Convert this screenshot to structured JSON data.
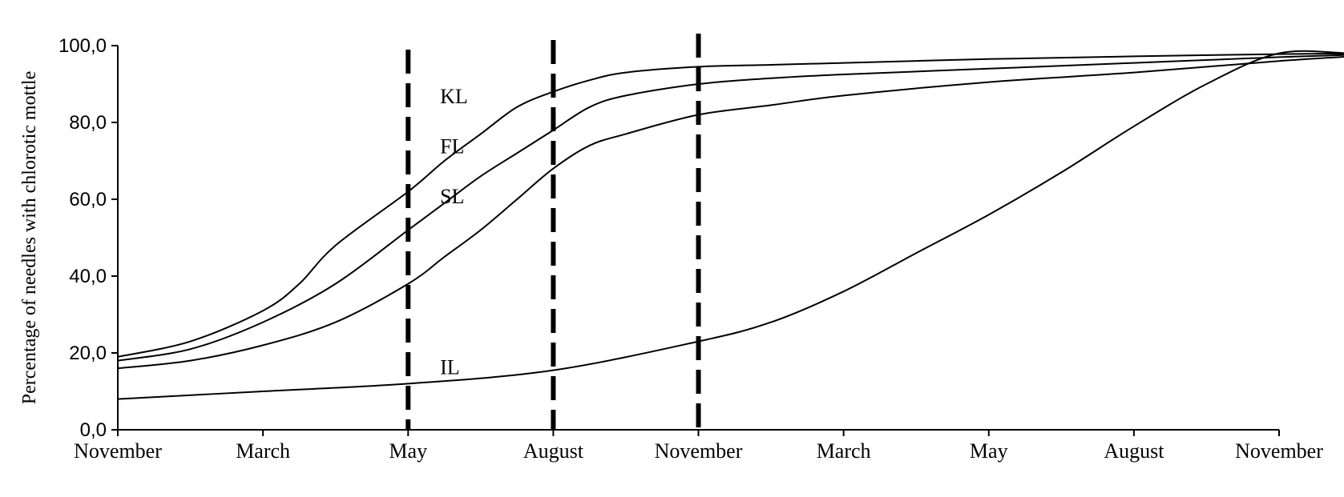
{
  "chart_data": {
    "type": "line",
    "ylabel": "Percentage of needles with chlorotic mottle",
    "xlabel": "",
    "ylim": [
      0,
      100
    ],
    "y_ticks": [
      "0,0",
      "20,0",
      "40,0",
      "60,0",
      "80,0",
      "100,0"
    ],
    "y_tick_values": [
      0,
      20,
      40,
      60,
      80,
      100
    ],
    "x_categories": [
      "November",
      "March",
      "May",
      "August",
      "November",
      "March",
      "May",
      "August",
      "November"
    ],
    "grid": false,
    "legend": "none (series labeled directly on lines)",
    "vertical_markers": [
      {
        "x": 2,
        "style": "dashed"
      },
      {
        "x": 3,
        "style": "dashed"
      },
      {
        "x": 4,
        "style": "dashed"
      }
    ],
    "series": [
      {
        "name": "KL",
        "x": [
          0,
          0.5,
          1,
          1.25,
          1.5,
          2,
          2.25,
          2.5,
          2.75,
          3,
          3.25,
          3.5,
          4,
          4.5,
          5,
          6,
          7,
          8,
          8.85
        ],
        "values": [
          19,
          23,
          31,
          38,
          48,
          62,
          70,
          77,
          84,
          88,
          91,
          93,
          94.5,
          95,
          95.5,
          96.5,
          97.2,
          97.8,
          98
        ]
      },
      {
        "name": "FL",
        "x": [
          0,
          0.5,
          1,
          1.5,
          2,
          2.25,
          2.5,
          2.75,
          3,
          3.25,
          3.5,
          4,
          4.5,
          5,
          6,
          7,
          8,
          8.85
        ],
        "values": [
          18,
          21,
          28,
          38,
          52,
          59,
          66,
          72,
          78,
          84,
          87,
          90,
          91.5,
          92.5,
          94,
          95.5,
          97,
          98
        ]
      },
      {
        "name": "SL",
        "x": [
          0,
          0.5,
          1,
          1.5,
          2,
          2.25,
          2.5,
          2.75,
          3,
          3.25,
          3.5,
          4,
          4.5,
          5,
          6,
          7,
          8,
          8.85
        ],
        "values": [
          16,
          18,
          22,
          28,
          38,
          45,
          52,
          60,
          68,
          74,
          77,
          82,
          84.5,
          87,
          90.5,
          93,
          96,
          98
        ]
      },
      {
        "name": "IL",
        "x": [
          0,
          1,
          2,
          3,
          4,
          4.5,
          5,
          5.5,
          6,
          6.5,
          7,
          7.5,
          8,
          8.5,
          8.85
        ],
        "values": [
          8,
          10,
          12,
          15.5,
          23,
          28,
          36,
          46,
          56,
          67,
          79,
          90,
          98,
          98,
          98
        ]
      }
    ]
  }
}
